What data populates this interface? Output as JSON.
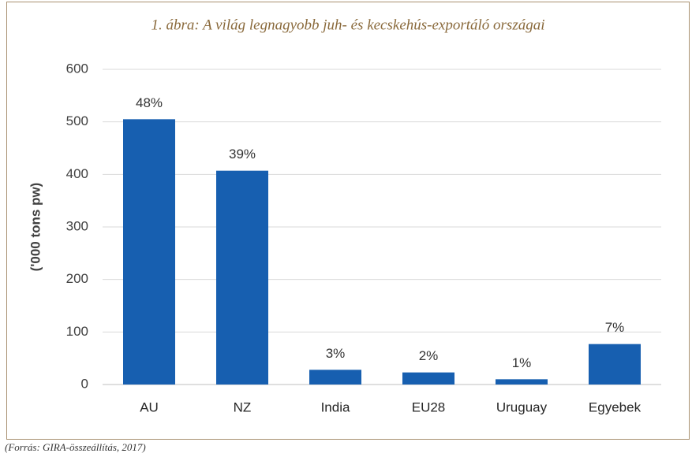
{
  "chart_data": {
    "type": "bar",
    "title": "1. ábra: A világ legnagyobb juh- és kecskehús-exportáló országai",
    "y_label": "('000 tons pw)",
    "categories": [
      "AU",
      "NZ",
      "India",
      "EU28",
      "Uruguay",
      "Egyebek"
    ],
    "values": [
      505,
      407,
      28,
      23,
      10,
      77
    ],
    "share_labels": [
      "48%",
      "39%",
      "3%",
      "2%",
      "1%",
      "7%"
    ],
    "color": "#175fb0",
    "ylim": [
      0,
      600
    ],
    "yticks": [
      0,
      100,
      200,
      300,
      400,
      500,
      600
    ],
    "grid": true,
    "source": "(Forrás: GIRA-összeállítás, 2017)"
  }
}
